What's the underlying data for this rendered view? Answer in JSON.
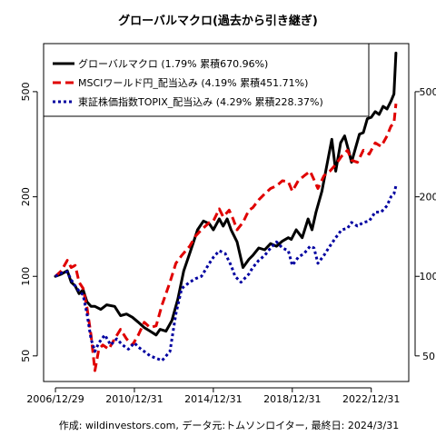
{
  "chart_data": {
    "type": "line",
    "title": "グローバルマクロ(過去から引き継ぎ)",
    "caption": "作成: wildinvestors.com, データ元:トムソンロイター, 最終日: 2024/3/31",
    "x_tick_labels": [
      "2006/12/29",
      "2010/12/31",
      "2014/12/31",
      "2018/12/31",
      "2022/12/31"
    ],
    "x_ticks": [
      2007.0,
      2011.0,
      2015.0,
      2019.0,
      2023.0
    ],
    "xlim": [
      2006.4,
      2024.9
    ],
    "y_scale": "log",
    "y_ticks": [
      50,
      100,
      200,
      500
    ],
    "y_tick_labels": [
      "50",
      "100",
      "200",
      "500"
    ],
    "ylim": [
      40,
      760
    ],
    "legend_position": "top-left",
    "series": [
      {
        "name": "グローバルマクロ (1.79% 累積670.96%)",
        "color": "#000000",
        "style": "solid",
        "x": [
          2007.0,
          2007.3,
          2007.6,
          2007.8,
          2008.0,
          2008.2,
          2008.4,
          2008.6,
          2008.8,
          2009.0,
          2009.3,
          2009.6,
          2010.0,
          2010.3,
          2010.6,
          2010.9,
          2011.2,
          2011.5,
          2011.8,
          2012.1,
          2012.3,
          2012.6,
          2012.9,
          2013.2,
          2013.5,
          2013.8,
          2014.0,
          2014.2,
          2014.5,
          2014.8,
          2015.0,
          2015.3,
          2015.5,
          2015.7,
          2015.9,
          2016.2,
          2016.5,
          2016.8,
          2017.0,
          2017.3,
          2017.6,
          2017.9,
          2018.2,
          2018.5,
          2018.8,
          2018.95,
          2019.2,
          2019.5,
          2019.8,
          2020.0,
          2020.2,
          2020.5,
          2020.8,
          2021.0,
          2021.2,
          2021.45,
          2021.65,
          2021.85,
          2022.0,
          2022.2,
          2022.4,
          2022.6,
          2022.8,
          2023.0,
          2023.2,
          2023.4,
          2023.6,
          2023.8,
          2024.0,
          2024.15,
          2024.25
        ],
        "values": [
          100,
          102,
          105,
          95,
          92,
          86,
          89,
          80,
          77,
          77,
          75,
          78,
          77,
          71,
          72,
          70,
          67,
          64,
          62,
          60,
          63,
          62,
          68,
          82,
          105,
          122,
          135,
          150,
          162,
          158,
          150,
          165,
          155,
          165,
          150,
          135,
          108,
          116,
          120,
          128,
          126,
          133,
          130,
          136,
          140,
          138,
          150,
          140,
          165,
          150,
          175,
          210,
          275,
          330,
          250,
          320,
          340,
          300,
          270,
          305,
          345,
          350,
          395,
          400,
          420,
          410,
          440,
          430,
          460,
          490,
          700
        ]
      },
      {
        "name": "MSCIワールド円_配当込み (4.19% 累積451.71%)",
        "color": "#e00000",
        "style": "dashed",
        "x": [
          2007.0,
          2007.3,
          2007.6,
          2007.8,
          2008.0,
          2008.2,
          2008.4,
          2008.6,
          2008.8,
          2009.0,
          2009.2,
          2009.4,
          2009.7,
          2010.0,
          2010.3,
          2010.6,
          2010.9,
          2011.2,
          2011.5,
          2011.8,
          2012.1,
          2012.4,
          2012.8,
          2013.1,
          2013.4,
          2013.8,
          2014.1,
          2014.4,
          2014.8,
          2015.0,
          2015.3,
          2015.5,
          2015.8,
          2016.0,
          2016.2,
          2016.5,
          2016.8,
          2017.0,
          2017.3,
          2017.6,
          2017.9,
          2018.2,
          2018.5,
          2018.8,
          2019.0,
          2019.3,
          2019.6,
          2019.9,
          2020.1,
          2020.3,
          2020.6,
          2020.9,
          2021.2,
          2021.5,
          2021.8,
          2022.0,
          2022.3,
          2022.6,
          2022.9,
          2023.2,
          2023.5,
          2023.8,
          2024.0,
          2024.15,
          2024.25
        ],
        "values": [
          100,
          105,
          115,
          108,
          110,
          95,
          90,
          76,
          60,
          44,
          53,
          55,
          53,
          58,
          63,
          58,
          55,
          60,
          67,
          64,
          65,
          78,
          95,
          112,
          120,
          130,
          142,
          150,
          160,
          162,
          180,
          168,
          178,
          165,
          150,
          160,
          178,
          182,
          195,
          205,
          215,
          220,
          230,
          228,
          210,
          230,
          240,
          250,
          232,
          215,
          240,
          250,
          265,
          285,
          300,
          275,
          270,
          300,
          290,
          320,
          310,
          340,
          370,
          380,
          450
        ]
      },
      {
        "name": "東証株価指数TOPIX_配当込み (4.29% 累積228.37%)",
        "color": "#0000a0",
        "style": "dotted",
        "x": [
          2007.0,
          2007.3,
          2007.6,
          2007.8,
          2008.0,
          2008.2,
          2008.4,
          2008.6,
          2008.8,
          2009.0,
          2009.2,
          2009.5,
          2009.8,
          2010.1,
          2010.4,
          2010.7,
          2011.0,
          2011.2,
          2011.5,
          2011.8,
          2012.1,
          2012.4,
          2012.8,
          2013.1,
          2013.4,
          2013.8,
          2014.1,
          2014.4,
          2014.8,
          2015.0,
          2015.3,
          2015.6,
          2015.9,
          2016.1,
          2016.4,
          2016.8,
          2017.0,
          2017.3,
          2017.6,
          2017.9,
          2018.2,
          2018.5,
          2018.8,
          2019.0,
          2019.3,
          2019.6,
          2019.9,
          2020.1,
          2020.3,
          2020.6,
          2020.9,
          2021.2,
          2021.5,
          2021.8,
          2022.0,
          2022.3,
          2022.6,
          2022.9,
          2023.2,
          2023.5,
          2023.8,
          2024.0,
          2024.15,
          2024.25
        ],
        "values": [
          100,
          103,
          104,
          97,
          92,
          88,
          85,
          72,
          58,
          52,
          56,
          60,
          55,
          58,
          55,
          53,
          56,
          54,
          52,
          50,
          49,
          48,
          52,
          72,
          90,
          95,
          98,
          100,
          112,
          118,
          125,
          122,
          110,
          100,
          95,
          102,
          108,
          115,
          120,
          128,
          135,
          128,
          125,
          110,
          118,
          122,
          130,
          128,
          112,
          120,
          130,
          140,
          150,
          152,
          160,
          155,
          160,
          162,
          175,
          175,
          185,
          200,
          205,
          220
        ]
      }
    ]
  }
}
